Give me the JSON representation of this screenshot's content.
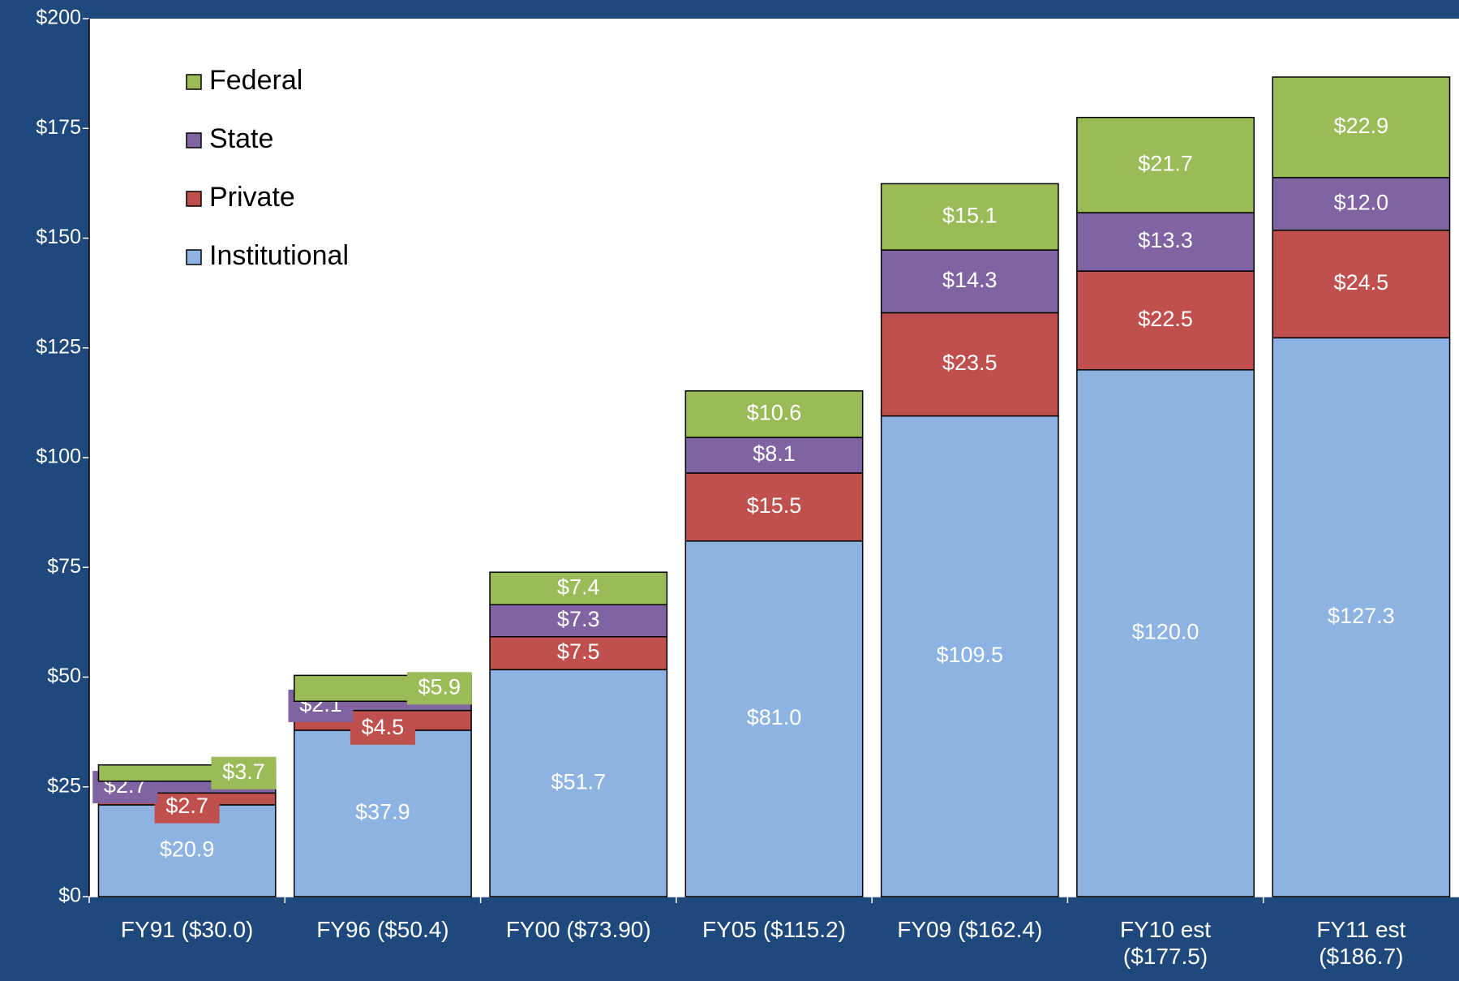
{
  "chart_data": {
    "type": "stacked_bar",
    "categories": [
      "FY91 ($30.0)",
      "FY96 ($50.4)",
      "FY00 ($73.90)",
      "FY05 ($115.2)",
      "FY09 ($162.4)",
      "FY10 est\n($177.5)",
      "FY11 est\n($186.7)"
    ],
    "series": [
      {
        "name": "Institutional",
        "color": "#8db3e2",
        "values": [
          20.9,
          37.9,
          51.7,
          81.0,
          109.5,
          120.0,
          127.3
        ],
        "value_labels": [
          "$20.9",
          "$37.9",
          "$51.7",
          "$81.0",
          "$109.5",
          "$120.0",
          "$127.3"
        ]
      },
      {
        "name": "Private",
        "color": "#c0504d",
        "values": [
          2.7,
          4.5,
          7.5,
          15.5,
          23.5,
          22.5,
          24.5
        ],
        "value_labels": [
          "$2.7",
          "$4.5",
          "$7.5",
          "$15.5",
          "$23.5",
          "$22.5",
          "$24.5"
        ]
      },
      {
        "name": "State",
        "color": "#8064a2",
        "values": [
          2.7,
          2.1,
          7.3,
          8.1,
          14.3,
          13.3,
          12.0
        ],
        "value_labels": [
          "$2.7",
          "$2.1",
          "$7.3",
          "$8.1",
          "$14.3",
          "$13.3",
          "$12.0"
        ]
      },
      {
        "name": "Federal",
        "color": "#9bbb59",
        "values": [
          3.7,
          5.9,
          7.4,
          10.6,
          15.1,
          21.7,
          22.9
        ],
        "value_labels": [
          "$3.7",
          "$5.9",
          "$7.4",
          "$10.6",
          "$15.1",
          "$21.7",
          "$22.9"
        ]
      }
    ],
    "ylim": [
      0,
      200
    ],
    "yticks": [
      {
        "value": 0,
        "label": "$0"
      },
      {
        "value": 25,
        "label": "$25"
      },
      {
        "value": 50,
        "label": "$50"
      },
      {
        "value": 75,
        "label": "$75"
      },
      {
        "value": 100,
        "label": "$100"
      },
      {
        "value": 125,
        "label": "$125"
      },
      {
        "value": 150,
        "label": "$150"
      },
      {
        "value": 175,
        "label": "$175"
      },
      {
        "value": 200,
        "label": "$200"
      }
    ],
    "legend": "upper left"
  }
}
